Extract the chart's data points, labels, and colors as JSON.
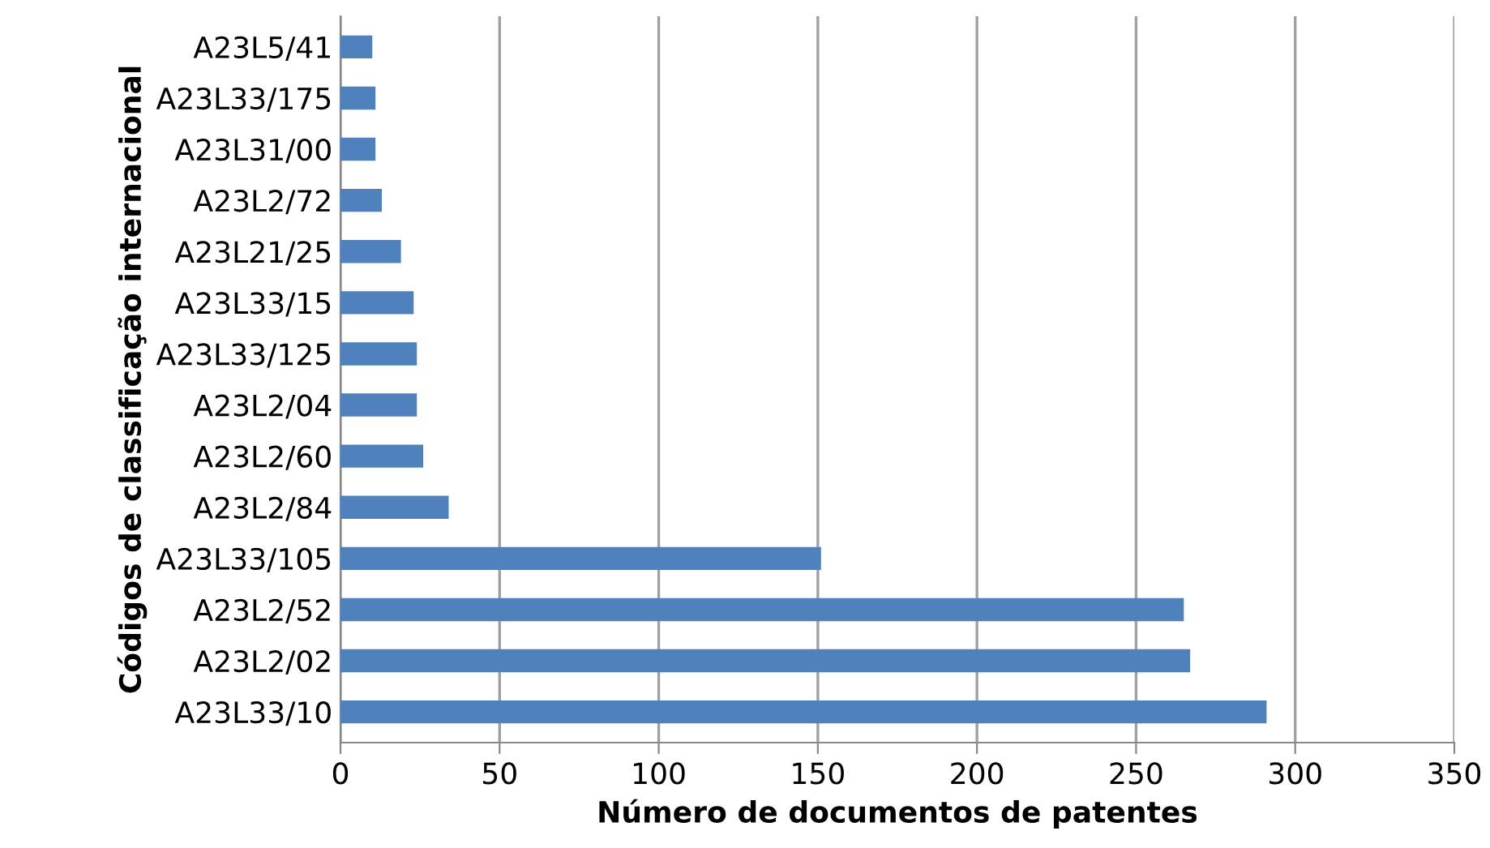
{
  "chart_data": {
    "type": "bar",
    "orientation": "horizontal",
    "xlabel": "Número de documentos de patentes",
    "ylabel": "Códigos de classificação internacional",
    "categories": [
      "A23L5/41",
      "A23L33/175",
      "A23L31/00",
      "A23L2/72",
      "A23L21/25",
      "A23L33/15",
      "A23L33/125",
      "A23L2/04",
      "A23L2/60",
      "A23L2/84",
      "A23L33/105",
      "A23L2/52",
      "A23L2/02",
      "A23L33/10"
    ],
    "values": [
      10,
      11,
      11,
      13,
      19,
      23,
      24,
      24,
      26,
      34,
      151,
      265,
      267,
      291
    ],
    "color": "#4f81bd",
    "xlim": [
      0,
      350
    ],
    "xticks": [
      0,
      50,
      100,
      150,
      200,
      250,
      300,
      350
    ],
    "grid": "x",
    "legend": false
  }
}
